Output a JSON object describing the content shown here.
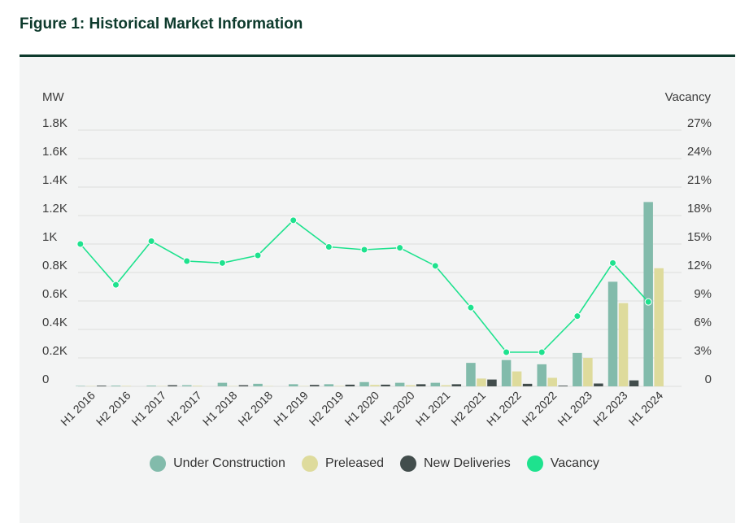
{
  "title": "Figure 1: Historical Market Information",
  "colors": {
    "background_panel": "#f3f4f4",
    "title_rule": "#0d3a2c",
    "grid": "#dcdedd",
    "under_construction": "#82bbab",
    "preleased": "#dedb9c",
    "new_deliveries": "#424d4c",
    "vacancy": "#1ee28e"
  },
  "legend": [
    {
      "label": "Under Construction",
      "color": "#82bbab",
      "icon": "circle-dot"
    },
    {
      "label": "Preleased",
      "color": "#dedb9c",
      "icon": "circle-dot"
    },
    {
      "label": "New Deliveries",
      "color": "#424d4c",
      "icon": "circle-dot"
    },
    {
      "label": "Vacancy",
      "color": "#1ee28e",
      "icon": "circle-dot"
    }
  ],
  "chart_data": {
    "type": "bar",
    "title": "Figure 1: Historical Market Information",
    "ylabel": "MW",
    "y2label": "Vacancy",
    "ylim": [
      0,
      1800
    ],
    "y2lim": [
      0,
      27
    ],
    "yticks": [
      "0",
      "0.2K",
      "0.4K",
      "0.6K",
      "0.8K",
      "1K",
      "1.2K",
      "1.4K",
      "1.6K",
      "1.8K"
    ],
    "y2ticks": [
      "0",
      "3%",
      "6%",
      "9%",
      "12%",
      "15%",
      "18%",
      "21%",
      "24%",
      "27%"
    ],
    "grid": true,
    "legend_position": "bottom",
    "categories": [
      "H1 2016",
      "H2 2016",
      "H1 2017",
      "H2 2017",
      "H1 2018",
      "H2 2018",
      "H1 2019",
      "H2 2019",
      "H1 2020",
      "H2 2020",
      "H1 2021",
      "H2 2021",
      "H1 2022",
      "H2 2022",
      "H1 2023",
      "H2 2023",
      "H1 2024"
    ],
    "series": [
      {
        "name": "Under Construction",
        "type": "bar",
        "axis": "left",
        "values": [
          3,
          5,
          5,
          8,
          25,
          18,
          15,
          15,
          30,
          25,
          25,
          165,
          185,
          155,
          235,
          735,
          1295
        ]
      },
      {
        "name": "Preleased",
        "type": "bar",
        "axis": "left",
        "values": [
          2,
          3,
          2,
          4,
          2,
          2,
          2,
          3,
          10,
          8,
          8,
          55,
          105,
          60,
          200,
          585,
          830
        ]
      },
      {
        "name": "New Deliveries",
        "type": "bar",
        "axis": "left",
        "values": [
          5,
          0,
          8,
          0,
          8,
          0,
          10,
          12,
          12,
          15,
          15,
          48,
          18,
          5,
          20,
          42,
          0
        ]
      },
      {
        "name": "Vacancy",
        "type": "line",
        "axis": "right",
        "values": [
          15.0,
          10.7,
          15.3,
          13.2,
          13.0,
          13.8,
          17.5,
          14.7,
          14.4,
          14.6,
          12.7,
          8.3,
          3.6,
          3.6,
          7.4,
          13.0,
          8.9
        ]
      }
    ]
  }
}
